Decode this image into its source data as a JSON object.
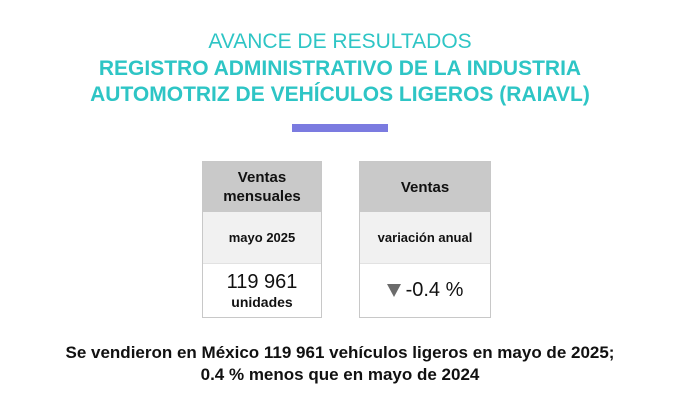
{
  "header": {
    "subtitle": "AVANCE DE RESULTADOS",
    "title_line1": "REGISTRO ADMINISTRATIVO DE LA INDUSTRIA",
    "title_line2": "AUTOMOTRIZ DE VEHÍCULOS LIGEROS (RAIAVL)"
  },
  "cards": {
    "monthly": {
      "head_line1": "Ventas",
      "head_line2": "mensuales",
      "period": "mayo 2025",
      "value": "119 961",
      "unit": "unidades"
    },
    "annual": {
      "head": "Ventas",
      "period": "variación anual",
      "value": "-0.4 %",
      "trend_icon": "down-triangle-icon"
    }
  },
  "summary": {
    "line1": "Se vendieron en México 119 961 vehículos ligeros en mayo de 2025;",
    "line2": "0.4 % menos que en mayo de 2024"
  },
  "colors": {
    "title": "#2ec5c5",
    "accent_bar": "#7b7be0",
    "card_header": "#c9c9c9",
    "card_subheader": "#f1f1f1",
    "trend_icon": "#6b6b6b"
  }
}
